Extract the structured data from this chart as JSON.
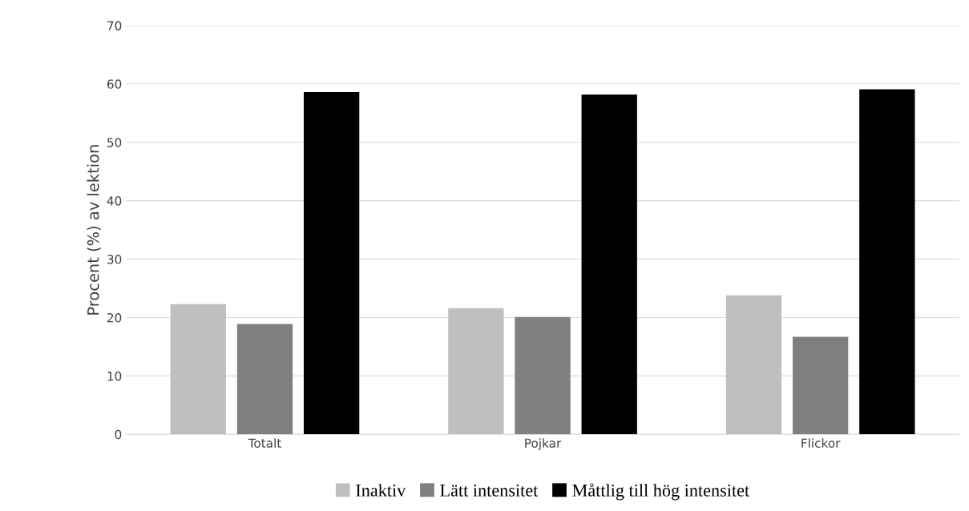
{
  "chart_data": {
    "type": "bar",
    "ylabel": "Procent (%) av lektion",
    "categories": [
      "Totalt",
      "Pojkar",
      "Flickor"
    ],
    "series": [
      {
        "name": "Inaktiv",
        "color": "#bfbfbf",
        "values": [
          22.3,
          21.6,
          23.8
        ]
      },
      {
        "name": "Lätt intensitet",
        "color": "#7f7f7f",
        "values": [
          18.9,
          20.1,
          16.7
        ]
      },
      {
        "name": "Måttlig till hög intensitet",
        "color": "#000000",
        "values": [
          58.6,
          58.2,
          59.1
        ]
      }
    ],
    "ylim": [
      0,
      70
    ],
    "yticks": [
      0,
      10,
      20,
      30,
      40,
      50,
      60,
      70
    ],
    "grid": "y",
    "legend": "bottom"
  }
}
